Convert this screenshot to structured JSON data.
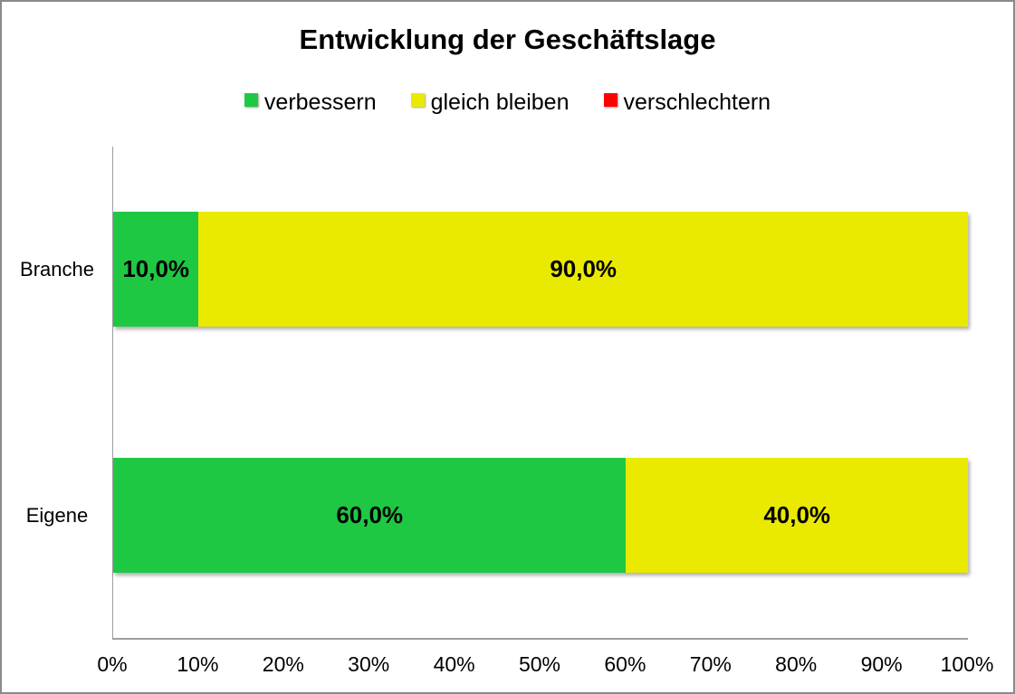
{
  "chart_data": {
    "type": "bar",
    "orientation": "horizontal",
    "stacked": true,
    "title": "Entwicklung der Geschäftslage",
    "categories": [
      "Branche",
      "Eigene"
    ],
    "series": [
      {
        "name": "verbessern",
        "color": "#1FC843",
        "values": [
          10.0,
          60.0
        ],
        "labels": [
          "10,0%",
          "60,0%"
        ]
      },
      {
        "name": "gleich bleiben",
        "color": "#EAEA00",
        "values": [
          90.0,
          40.0
        ],
        "labels": [
          "90,0%",
          "40,0%"
        ]
      },
      {
        "name": "verschlechtern",
        "color": "#FD0000",
        "values": [
          0.0,
          0.0
        ],
        "labels": [
          "",
          ""
        ]
      }
    ],
    "xlim": [
      0,
      100
    ],
    "x_ticks": [
      "0%",
      "10%",
      "20%",
      "30%",
      "40%",
      "50%",
      "60%",
      "70%",
      "80%",
      "90%",
      "100%"
    ],
    "legend_position": "top",
    "grid": false,
    "value_format": "percent-comma-decimal"
  }
}
